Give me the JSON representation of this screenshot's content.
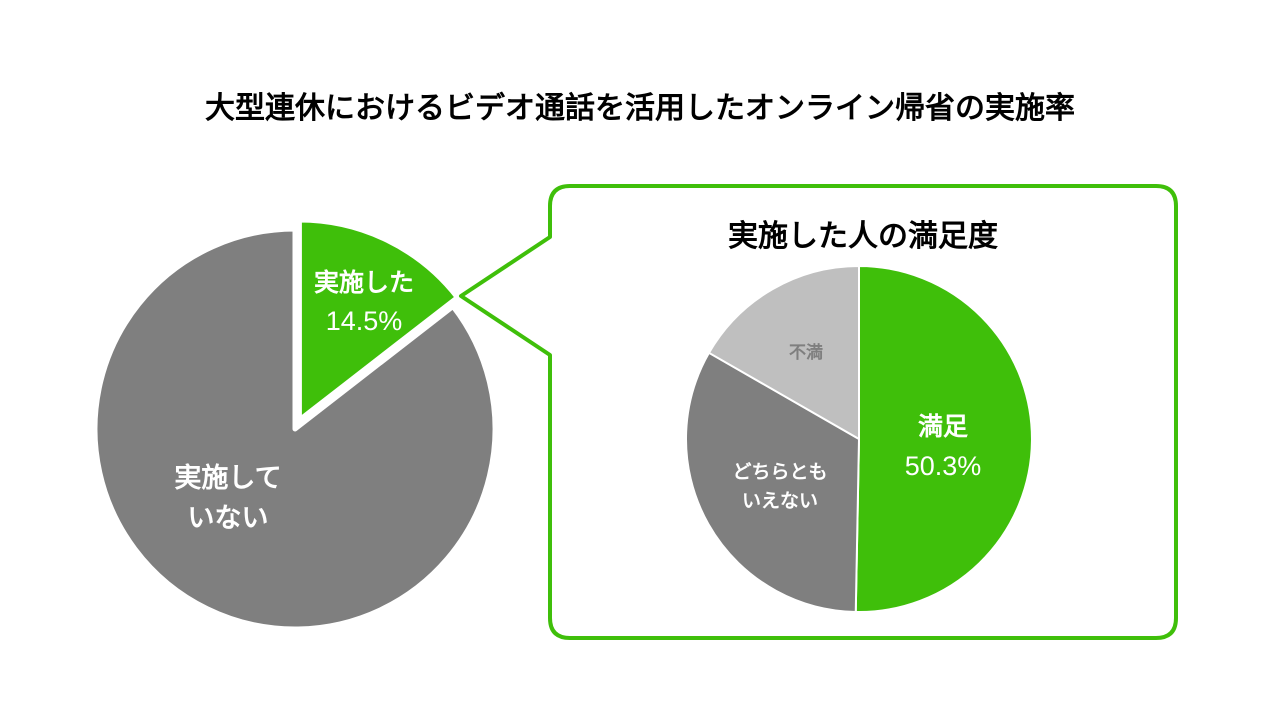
{
  "title": "大型連休におけるビデオ通話を活用したオンライン帰省の実施率",
  "colors": {
    "accent_green": "#3fbf0a",
    "dark_gray": "#7f7f7f",
    "light_gray": "#bfbfbf",
    "white": "#ffffff",
    "text": "#000000"
  },
  "chart_data": [
    {
      "type": "pie",
      "title": "",
      "slices": [
        {
          "label_lines": [
            "実施した"
          ],
          "value_label": "14.5%",
          "value": 14.5,
          "color": "#3fbf0a"
        },
        {
          "label_lines": [
            "実施して",
            "いない"
          ],
          "value_label": "",
          "value": 85.5,
          "color": "#7f7f7f"
        }
      ]
    },
    {
      "type": "pie",
      "title": "実施した人の満足度",
      "slices": [
        {
          "label_lines": [
            "満足"
          ],
          "value_label": "50.3%",
          "value": 50.3,
          "color": "#3fbf0a"
        },
        {
          "label_lines": [
            "どちらとも",
            "いえない"
          ],
          "value_label": "",
          "value": 33.0,
          "color": "#7f7f7f"
        },
        {
          "label_lines": [
            "不満"
          ],
          "value_label": "",
          "value": 16.7,
          "color": "#bfbfbf"
        }
      ]
    }
  ]
}
